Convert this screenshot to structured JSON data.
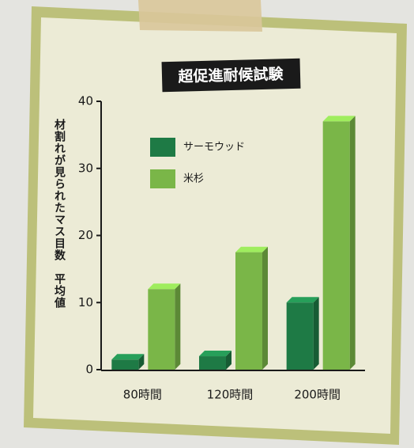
{
  "chart_data": {
    "type": "bar",
    "title": "超促進耐候試験",
    "y_label": "材割れが見られたマス目数　平均値",
    "categories": [
      "80時間",
      "120時間",
      "200時間"
    ],
    "series": [
      {
        "name": "サーモウッド",
        "color": "#1e7a45",
        "values": [
          1.5,
          2,
          10
        ]
      },
      {
        "name": "米杉",
        "color": "#7ab648",
        "values": [
          12,
          17.5,
          37
        ]
      }
    ],
    "ylim": [
      0,
      40
    ],
    "yticks": [
      0,
      10,
      20,
      30,
      40
    ]
  }
}
